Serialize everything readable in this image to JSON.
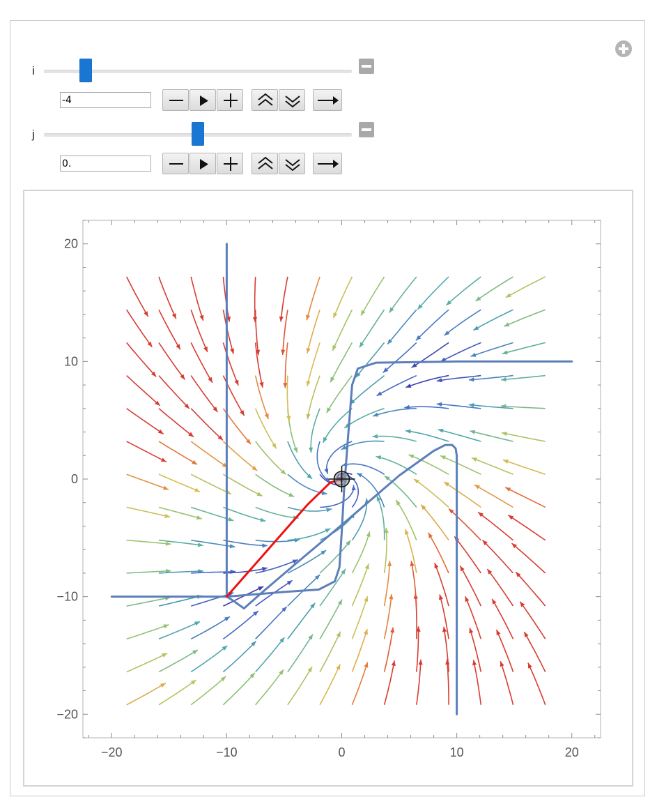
{
  "controls": {
    "i": {
      "label": "i",
      "value": "-4",
      "fraction": 0.12
    },
    "j": {
      "label": "j",
      "value": "0.",
      "fraction": 0.5
    },
    "icons": [
      "minus-icon",
      "play-icon",
      "plus-icon",
      "faster-icon",
      "slower-icon",
      "direction-arrow-icon",
      "add-circle-icon",
      "collapse-icon"
    ]
  },
  "chart_data": {
    "type": "scatter",
    "title": "",
    "xlabel": "",
    "ylabel": "",
    "xlim": [
      -22.5,
      22.5
    ],
    "ylim": [
      -22,
      22
    ],
    "xticks": [
      -20,
      -10,
      0,
      10,
      20
    ],
    "yticks": [
      -20,
      -10,
      0,
      10,
      20
    ],
    "xtick_labels": [
      "−20",
      "−10",
      "0",
      "10",
      "20"
    ],
    "ytick_labels": [
      "−20",
      "−10",
      "0",
      "10",
      "20"
    ],
    "grid": false,
    "colors": {
      "highlight_curve": "#ee1111",
      "solution_curves": "#5b7fb9"
    },
    "fixed_points": [
      {
        "x": -10,
        "y": -10
      },
      {
        "x": 0,
        "y": 0
      },
      {
        "x": 10,
        "y": 10
      }
    ],
    "locator": {
      "x": 0,
      "y": 0
    },
    "series": [
      {
        "values": [
          [
            -10,
            20
          ],
          [
            -10,
            10
          ],
          [
            -10,
            -5
          ],
          [
            -10,
            -10
          ]
        ]
      },
      {
        "values": [
          [
            -20,
            -10
          ],
          [
            -15,
            -10
          ],
          [
            -10,
            -10
          ]
        ]
      },
      {
        "values": [
          [
            10,
            -20
          ],
          [
            10,
            -10
          ],
          [
            10,
            0
          ],
          [
            10,
            2
          ],
          [
            9.9,
            2.6
          ],
          [
            9.6,
            2.9
          ],
          [
            9,
            2.9
          ],
          [
            8,
            2.4
          ],
          [
            5,
            0.3
          ],
          [
            0,
            -3.9
          ],
          [
            -4,
            -7.2
          ],
          [
            -7,
            -9.7
          ],
          [
            -8.5,
            -11
          ],
          [
            -9.5,
            -10.3
          ],
          [
            -10,
            -10
          ]
        ]
      },
      {
        "values": [
          [
            20,
            10
          ],
          [
            15,
            10
          ],
          [
            10,
            10
          ],
          [
            3,
            9.9
          ],
          [
            1.4,
            9.4
          ],
          [
            0.9,
            8
          ],
          [
            0.5,
            3
          ],
          [
            0.2,
            -1
          ],
          [
            0,
            -4.5
          ],
          [
            -0.2,
            -7.5
          ],
          [
            -0.6,
            -8.7
          ],
          [
            -2,
            -9.4
          ],
          [
            -5,
            -9.6
          ],
          [
            -10,
            -10
          ]
        ]
      },
      {
        "values": [
          [
            0,
            0
          ],
          [
            -1,
            -0.3
          ],
          [
            -3,
            -2.2
          ],
          [
            -10,
            -10
          ]
        ]
      }
    ]
  }
}
